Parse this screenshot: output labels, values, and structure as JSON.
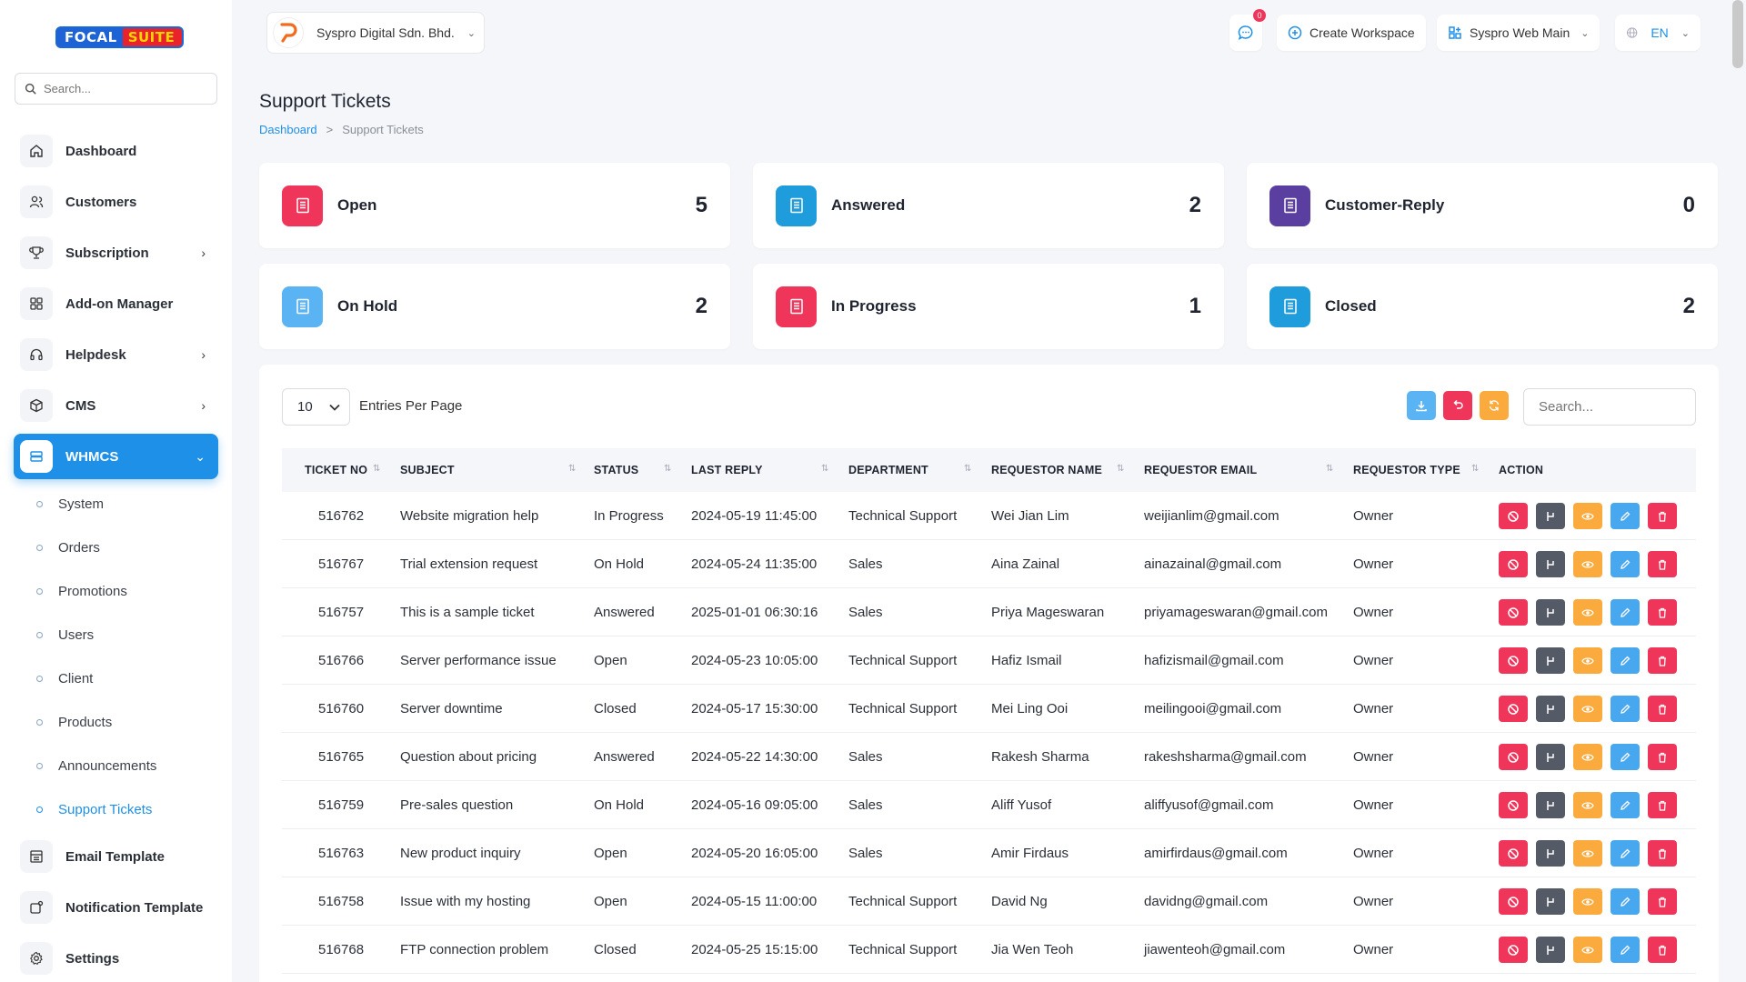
{
  "brand": {
    "part1": "FOCAL",
    "part2": "SUITE"
  },
  "sidebar": {
    "search_placeholder": "Search...",
    "items": [
      {
        "label": "Dashboard"
      },
      {
        "label": "Customers"
      },
      {
        "label": "Subscription",
        "chevron": "›"
      },
      {
        "label": "Add-on Manager"
      },
      {
        "label": "Helpdesk",
        "chevron": "›"
      },
      {
        "label": "CMS",
        "chevron": "›"
      },
      {
        "label": "WHMCS",
        "chevron": "⌄"
      },
      {
        "label": "Email Template"
      },
      {
        "label": "Notification Template"
      },
      {
        "label": "Settings"
      }
    ],
    "sub_items": [
      {
        "label": "System"
      },
      {
        "label": "Orders"
      },
      {
        "label": "Promotions"
      },
      {
        "label": "Users"
      },
      {
        "label": "Client"
      },
      {
        "label": "Products"
      },
      {
        "label": "Announcements"
      },
      {
        "label": "Support Tickets"
      }
    ]
  },
  "topbar": {
    "company": "Syspro Digital Sdn. Bhd.",
    "notif_count": "0",
    "create_workspace": "Create Workspace",
    "workspace": "Syspro Web Main",
    "lang": "EN"
  },
  "page": {
    "title": "Support Tickets",
    "breadcrumb": {
      "home": "Dashboard",
      "sep": ">",
      "current": "Support Tickets"
    }
  },
  "stats": [
    {
      "label": "Open",
      "value": "5",
      "color": "#f0355a"
    },
    {
      "label": "Answered",
      "value": "2",
      "color": "#1f9cdc"
    },
    {
      "label": "Customer-Reply",
      "value": "0",
      "color": "#5b3fa0"
    },
    {
      "label": "On Hold",
      "value": "2",
      "color": "#5ab4f3"
    },
    {
      "label": "In Progress",
      "value": "1",
      "color": "#f0355a"
    },
    {
      "label": "Closed",
      "value": "2",
      "color": "#1f9cdc"
    }
  ],
  "table": {
    "entries_value": "10",
    "entries_label": "Entries Per Page",
    "search_placeholder": "Search...",
    "columns": [
      "TICKET NO",
      "SUBJECT",
      "STATUS",
      "LAST REPLY",
      "DEPARTMENT",
      "REQUESTOR NAME",
      "REQUESTOR EMAIL",
      "REQUESTOR TYPE",
      "ACTION"
    ],
    "rows": [
      {
        "ticket": "516762",
        "subject": "Website migration help",
        "status": "In Progress",
        "last_reply": "2024-05-19 11:45:00",
        "department": "Technical Support",
        "name": "Wei Jian Lim",
        "email": "weijianlim@gmail.com",
        "type": "Owner"
      },
      {
        "ticket": "516767",
        "subject": "Trial extension request",
        "status": "On Hold",
        "last_reply": "2024-05-24 11:35:00",
        "department": "Sales",
        "name": "Aina Zainal",
        "email": "ainazainal@gmail.com",
        "type": "Owner"
      },
      {
        "ticket": "516757",
        "subject": "This is a sample ticket",
        "status": "Answered",
        "last_reply": "2025-01-01 06:30:16",
        "department": "Sales",
        "name": "Priya Mageswaran",
        "email": "priyamageswaran@gmail.com",
        "type": "Owner"
      },
      {
        "ticket": "516766",
        "subject": "Server performance issue",
        "status": "Open",
        "last_reply": "2024-05-23 10:05:00",
        "department": "Technical Support",
        "name": "Hafiz Ismail",
        "email": "hafizismail@gmail.com",
        "type": "Owner"
      },
      {
        "ticket": "516760",
        "subject": "Server downtime",
        "status": "Closed",
        "last_reply": "2024-05-17 15:30:00",
        "department": "Technical Support",
        "name": "Mei Ling Ooi",
        "email": "meilingooi@gmail.com",
        "type": "Owner"
      },
      {
        "ticket": "516765",
        "subject": "Question about pricing",
        "status": "Answered",
        "last_reply": "2024-05-22 14:30:00",
        "department": "Sales",
        "name": "Rakesh Sharma",
        "email": "rakeshsharma@gmail.com",
        "type": "Owner"
      },
      {
        "ticket": "516759",
        "subject": "Pre-sales question",
        "status": "On Hold",
        "last_reply": "2024-05-16 09:05:00",
        "department": "Sales",
        "name": "Aliff Yusof",
        "email": "aliffyusof@gmail.com",
        "type": "Owner"
      },
      {
        "ticket": "516763",
        "subject": "New product inquiry",
        "status": "Open",
        "last_reply": "2024-05-20 16:05:00",
        "department": "Sales",
        "name": "Amir Firdaus",
        "email": "amirfirdaus@gmail.com",
        "type": "Owner"
      },
      {
        "ticket": "516758",
        "subject": "Issue with my hosting",
        "status": "Open",
        "last_reply": "2024-05-15 11:00:00",
        "department": "Technical Support",
        "name": "David Ng",
        "email": "davidng@gmail.com",
        "type": "Owner"
      },
      {
        "ticket": "516768",
        "subject": "FTP connection problem",
        "status": "Closed",
        "last_reply": "2024-05-25 15:15:00",
        "department": "Technical Support",
        "name": "Jia Wen Teoh",
        "email": "jiawenteoh@gmail.com",
        "type": "Owner"
      }
    ]
  },
  "colors": {
    "accent": "#1e90e8",
    "danger": "#f0355a",
    "warning": "#fbab3d",
    "dark": "#555b66",
    "info": "#47a8f0"
  }
}
